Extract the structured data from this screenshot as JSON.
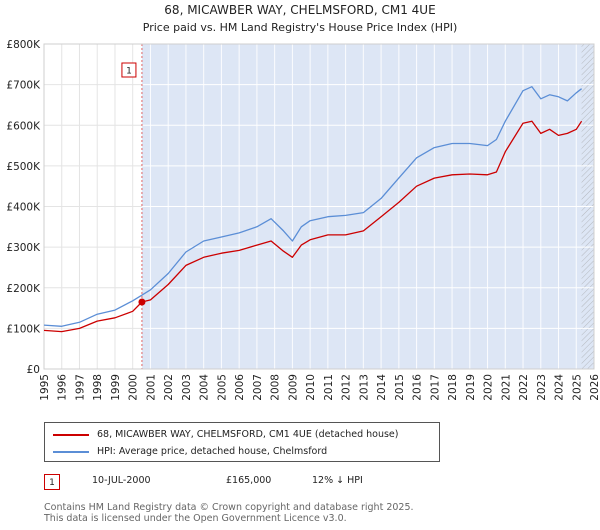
{
  "chart_data": {
    "type": "line",
    "title": "68, MICAWBER WAY, CHELMSFORD, CM1 4UE",
    "subtitle": "Price paid vs. HM Land Registry's House Price Index (HPI)",
    "xlabel": "",
    "ylabel": "",
    "xlim": [
      1995,
      2026
    ],
    "ylim": [
      0,
      800000
    ],
    "x_ticks": [
      "1995",
      "1996",
      "1997",
      "1998",
      "1999",
      "2000",
      "2001",
      "2002",
      "2003",
      "2004",
      "2005",
      "2006",
      "2007",
      "2008",
      "2009",
      "2010",
      "2011",
      "2012",
      "2013",
      "2014",
      "2015",
      "2016",
      "2017",
      "2018",
      "2019",
      "2020",
      "2021",
      "2022",
      "2023",
      "2024",
      "2025",
      "2026"
    ],
    "y_ticks": [
      {
        "value": 0,
        "label": "£0"
      },
      {
        "value": 100000,
        "label": "£100K"
      },
      {
        "value": 200000,
        "label": "£200K"
      },
      {
        "value": 300000,
        "label": "£300K"
      },
      {
        "value": 400000,
        "label": "£400K"
      },
      {
        "value": 500000,
        "label": "£500K"
      },
      {
        "value": 600000,
        "label": "£600K"
      },
      {
        "value": 700000,
        "label": "£700K"
      },
      {
        "value": 800000,
        "label": "£800K"
      }
    ],
    "series": [
      {
        "name": "68, MICAWBER WAY, CHELMSFORD, CM1 4UE (detached house)",
        "color": "#cc0000",
        "x": [
          1995,
          1996,
          1997,
          1998,
          1999,
          2000,
          2000.52,
          2001,
          2002,
          2003,
          2004,
          2005,
          2006,
          2007,
          2007.8,
          2008.5,
          2009,
          2009.5,
          2010,
          2011,
          2012,
          2013,
          2014,
          2015,
          2016,
          2017,
          2018,
          2019,
          2020,
          2020.5,
          2021,
          2022,
          2022.5,
          2023,
          2023.5,
          2024,
          2024.5,
          2025,
          2025.3
        ],
        "y": [
          95000,
          92000,
          100000,
          118000,
          126000,
          142000,
          165000,
          170000,
          208000,
          255000,
          275000,
          285000,
          292000,
          305000,
          315000,
          290000,
          275000,
          305000,
          318000,
          330000,
          330000,
          340000,
          375000,
          410000,
          450000,
          470000,
          478000,
          480000,
          478000,
          485000,
          535000,
          605000,
          610000,
          580000,
          590000,
          575000,
          580000,
          590000,
          610000
        ]
      },
      {
        "name": "HPI: Average price, detached house, Chelmsford",
        "color": "#5b8ed6",
        "x": [
          1995,
          1996,
          1997,
          1998,
          1999,
          2000,
          2001,
          2002,
          2003,
          2004,
          2005,
          2006,
          2007,
          2007.8,
          2008.5,
          2009,
          2009.5,
          2010,
          2011,
          2012,
          2013,
          2014,
          2015,
          2016,
          2017,
          2018,
          2019,
          2020,
          2020.5,
          2021,
          2022,
          2022.5,
          2023,
          2023.5,
          2024,
          2024.5,
          2025,
          2025.3
        ],
        "y": [
          108000,
          105000,
          115000,
          135000,
          145000,
          168000,
          195000,
          235000,
          288000,
          315000,
          325000,
          335000,
          350000,
          370000,
          340000,
          315000,
          350000,
          365000,
          375000,
          378000,
          385000,
          420000,
          470000,
          520000,
          545000,
          555000,
          555000,
          550000,
          565000,
          610000,
          685000,
          695000,
          665000,
          675000,
          670000,
          660000,
          680000,
          690000
        ]
      }
    ],
    "annotations": [
      {
        "label": "1",
        "x": 2000.52,
        "y": 165000
      }
    ],
    "legend": "bottom"
  },
  "legend": {
    "series1": "68, MICAWBER WAY, CHELMSFORD, CM1 4UE (detached house)",
    "series2": "HPI: Average price, detached house, Chelmsford",
    "series1_color": "#cc0000",
    "series2_color": "#5b8ed6"
  },
  "sale": {
    "badge": "1",
    "date": "10-JUL-2000",
    "price": "£165,000",
    "hpi_note": "12% ↓ HPI"
  },
  "footer": {
    "line1": "Contains HM Land Registry data © Crown copyright and database right 2025.",
    "line2": "This data is licensed under the Open Government Licence v3.0."
  }
}
